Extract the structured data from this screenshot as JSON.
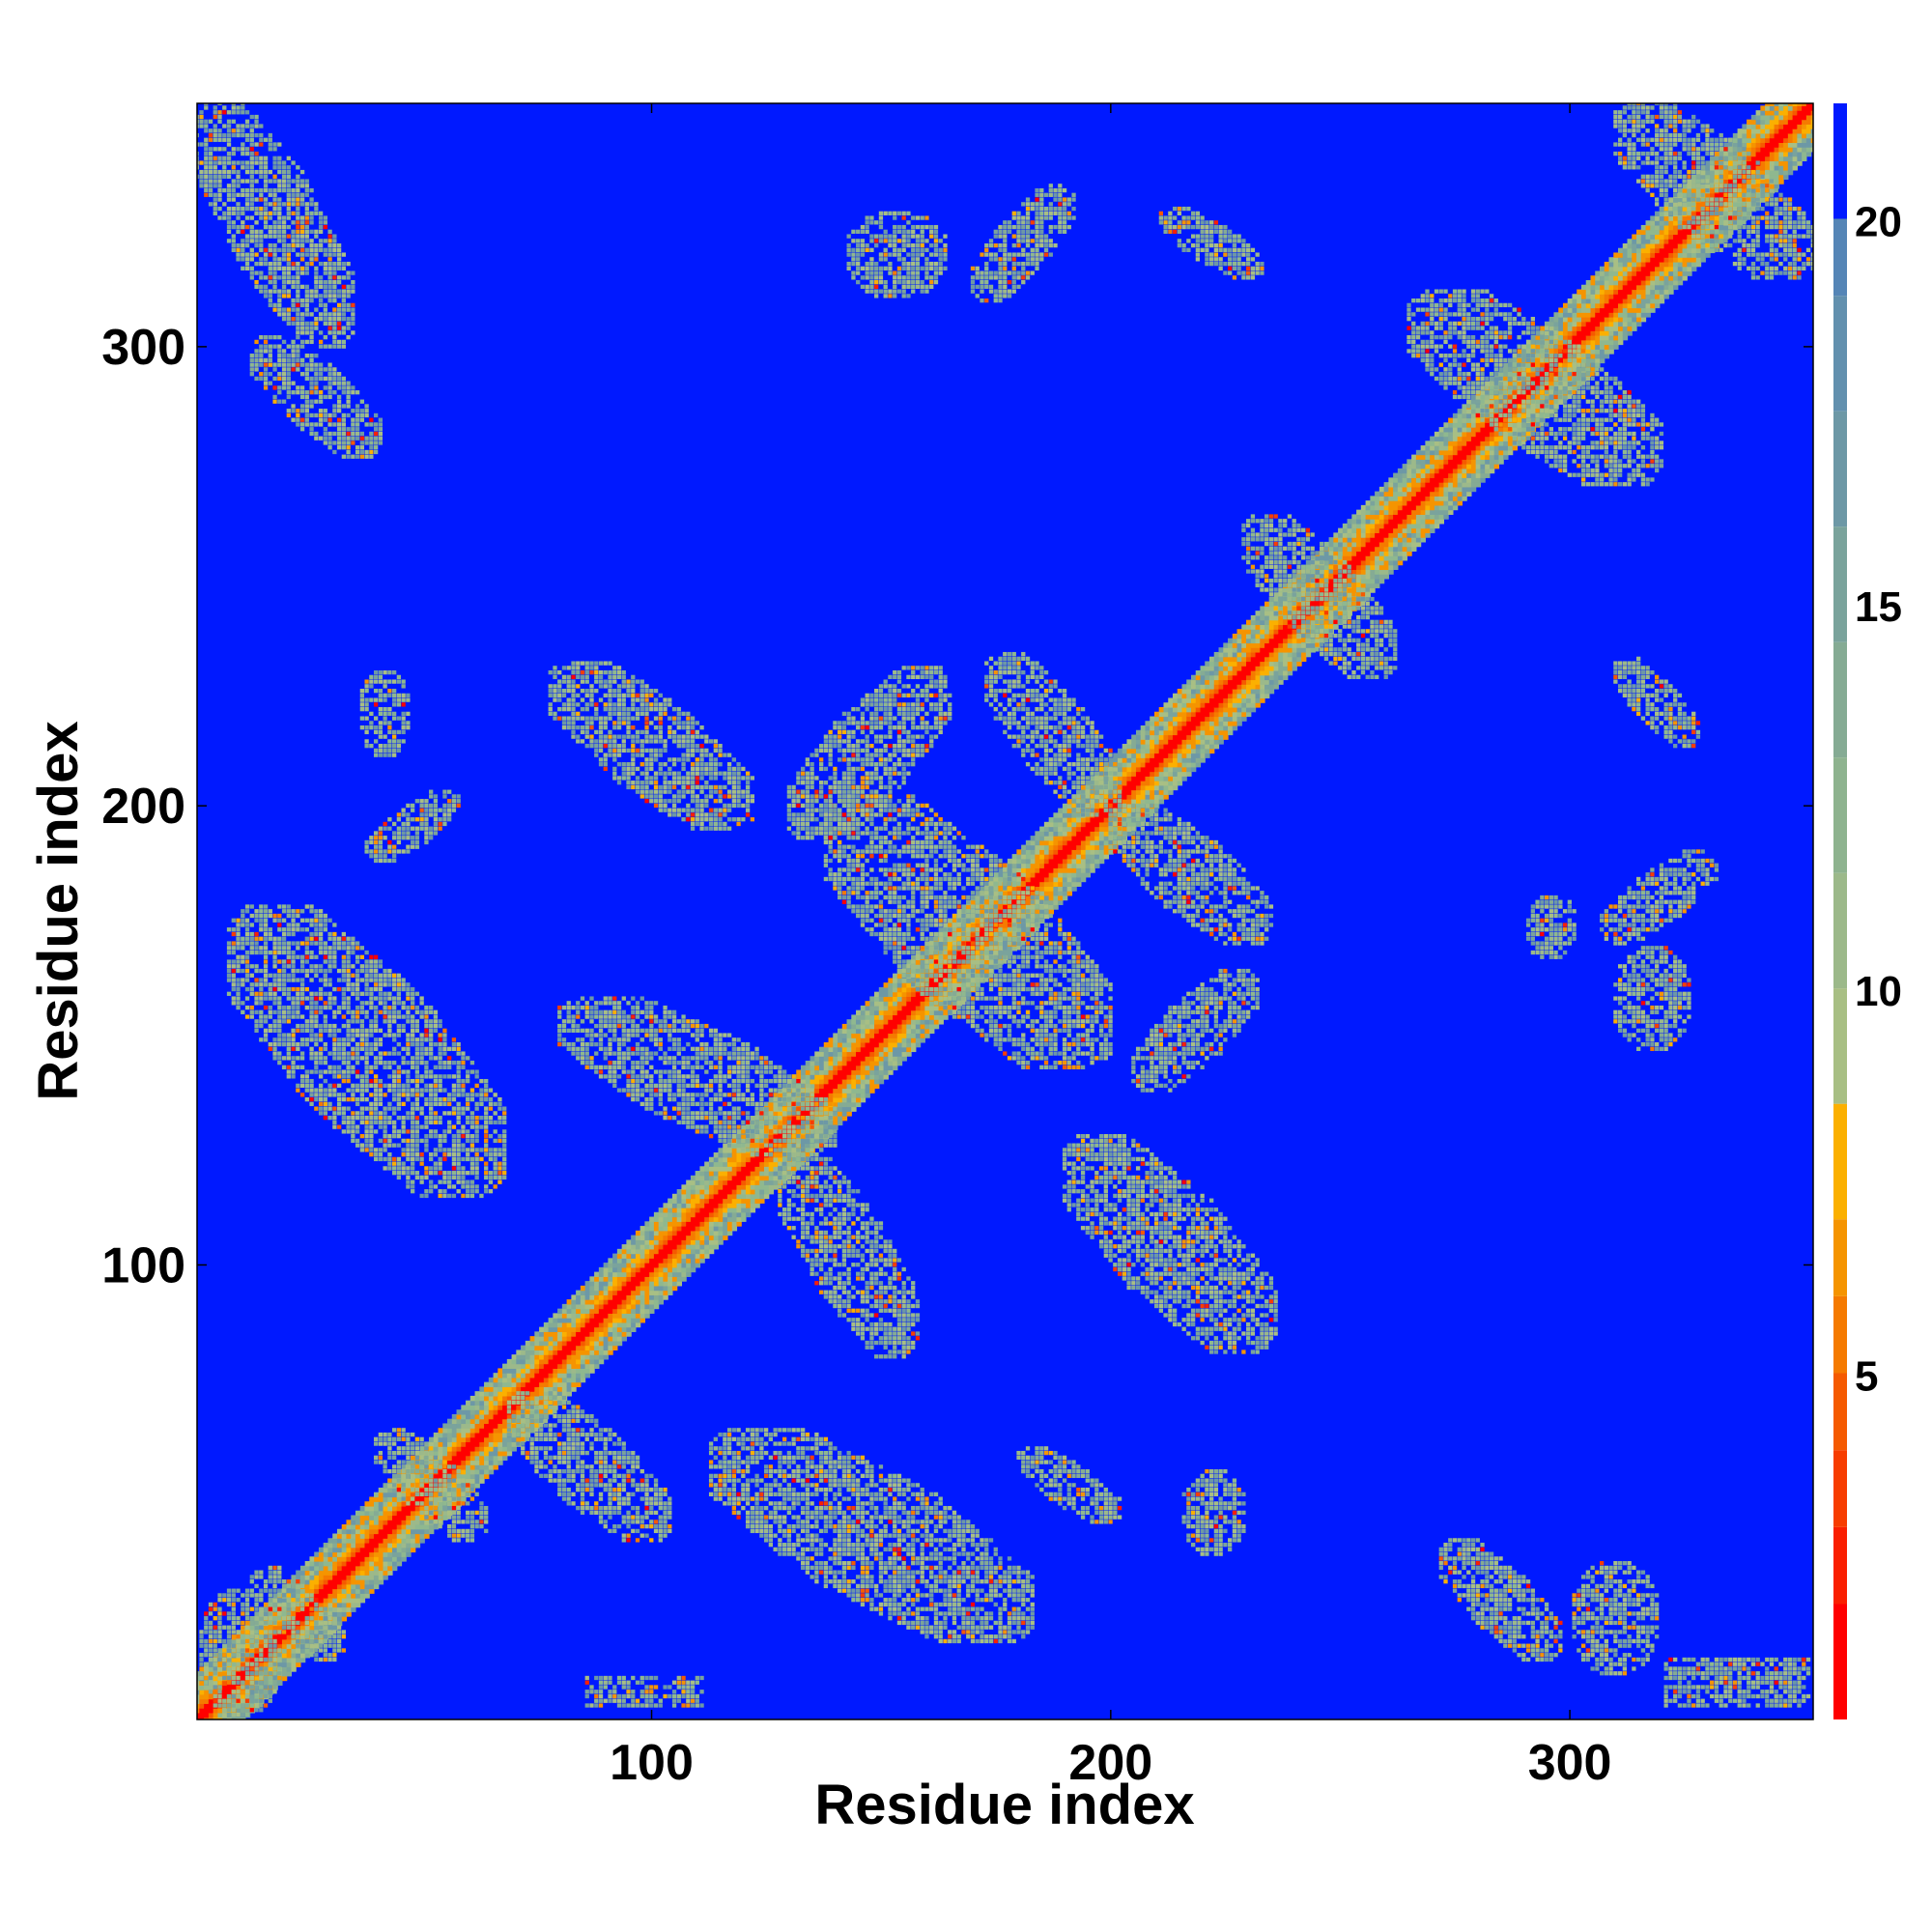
{
  "chart_data": {
    "type": "heatmap",
    "title": "",
    "xlabel": "Residue index",
    "ylabel": "Residue index",
    "xlim": [
      1,
      353
    ],
    "ylim": [
      1,
      353
    ],
    "x_ticks": [
      100,
      200,
      300
    ],
    "y_ticks": [
      100,
      200,
      300
    ],
    "colorbar": {
      "range": [
        0.5,
        21.5
      ],
      "ticks": [
        5,
        10,
        15,
        20
      ],
      "levels": [
        {
          "from": 0.5,
          "to": 2,
          "color": "#ff0000"
        },
        {
          "from": 2,
          "to": 3,
          "color": "#fa1f00"
        },
        {
          "from": 3,
          "to": 4,
          "color": "#f73d00"
        },
        {
          "from": 4,
          "to": 5,
          "color": "#f55a00"
        },
        {
          "from": 5,
          "to": 6,
          "color": "#f57a00"
        },
        {
          "from": 6,
          "to": 7,
          "color": "#f59400"
        },
        {
          "from": 7,
          "to": 8.5,
          "color": "#fbb000"
        },
        {
          "from": 8.5,
          "to": 10,
          "color": "#a8bf84"
        },
        {
          "from": 10,
          "to": 11.5,
          "color": "#9cb98a"
        },
        {
          "from": 11.5,
          "to": 13,
          "color": "#8eb38f"
        },
        {
          "from": 13,
          "to": 14.5,
          "color": "#85ab94"
        },
        {
          "from": 14.5,
          "to": 16,
          "color": "#7aa39c"
        },
        {
          "from": 16,
          "to": 17.5,
          "color": "#6d98a6"
        },
        {
          "from": 17.5,
          "to": 19,
          "color": "#6290ae"
        },
        {
          "from": 19,
          "to": 20,
          "color": "#5585b6"
        },
        {
          "from": 20,
          "to": 21.5,
          "color": "#0019ff"
        }
      ]
    },
    "background_color": "#0019ff",
    "diagonal_color": "#ff0000",
    "contact_color": "#8fb88f",
    "contact_regions": [
      {
        "x": [
          13,
          33
        ],
        "y": [
          14,
          34
        ],
        "angle": "anti"
      },
      {
        "x": [
          40,
          64
        ],
        "y": [
          40,
          64
        ],
        "angle": "anti"
      },
      {
        "x": [
          69,
          104
        ],
        "y": [
          40,
          72
        ],
        "angle": "anti"
      },
      {
        "x": [
          85,
          112
        ],
        "y": [
          2,
          12
        ],
        "angle": "flat"
      },
      {
        "x": [
          113,
          183
        ],
        "y": [
          18,
          64
        ],
        "angle": "anti"
      },
      {
        "x": [
          180,
          202
        ],
        "y": [
          44,
          60
        ],
        "angle": "anti"
      },
      {
        "x": [
          215,
          230
        ],
        "y": [
          36,
          56
        ],
        "angle": "none"
      },
      {
        "x": [
          272,
          298
        ],
        "y": [
          14,
          40
        ],
        "angle": "anti"
      },
      {
        "x": [
          300,
          320
        ],
        "y": [
          10,
          36
        ],
        "angle": "none"
      },
      {
        "x": [
          320,
          353
        ],
        "y": [
          2,
          16
        ],
        "angle": "flat"
      },
      {
        "x": [
          1,
          20
        ],
        "y": [
          1,
          30
        ],
        "angle": "none"
      },
      {
        "x": [
          8,
          68
        ],
        "y": [
          115,
          178
        ],
        "angle": "anti"
      },
      {
        "x": [
          38,
          58
        ],
        "y": [
          188,
          203
        ],
        "angle": "diag"
      },
      {
        "x": [
          36,
          48
        ],
        "y": [
          210,
          230
        ],
        "angle": "none"
      },
      {
        "x": [
          78,
          122
        ],
        "y": [
          195,
          231
        ],
        "angle": "anti"
      },
      {
        "x": [
          80,
          140
        ],
        "y": [
          124,
          158
        ],
        "angle": "anti"
      },
      {
        "x": [
          128,
          158
        ],
        "y": [
          80,
          125
        ],
        "angle": "anti"
      },
      {
        "x": [
          130,
          165
        ],
        "y": [
          193,
          230
        ],
        "angle": "diag"
      },
      {
        "x": [
          138,
          200
        ],
        "y": [
          143,
          202
        ],
        "angle": "anti"
      },
      {
        "x": [
          173,
          202
        ],
        "y": [
          198,
          233
        ],
        "angle": "anti"
      },
      {
        "x": [
          200,
          235
        ],
        "y": [
          170,
          200
        ],
        "angle": "anti"
      },
      {
        "x": [
          205,
          232
        ],
        "y": [
          138,
          164
        ],
        "angle": "diag"
      },
      {
        "x": [
          190,
          236
        ],
        "y": [
          81,
          128
        ],
        "angle": "anti"
      },
      {
        "x": [
          229,
          262
        ],
        "y": [
          228,
          263
        ],
        "angle": "anti"
      },
      {
        "x": [
          265,
          320
        ],
        "y": [
          270,
          312
        ],
        "angle": "anti"
      },
      {
        "x": [
          310,
          353
        ],
        "y": [
          315,
          353
        ],
        "angle": "anti"
      },
      {
        "x": [
          1,
          35
        ],
        "y": [
          300,
          353
        ],
        "angle": "anti"
      },
      {
        "x": [
          13,
          41
        ],
        "y": [
          276,
          302
        ],
        "angle": "anti"
      },
      {
        "x": [
          142,
          165
        ],
        "y": [
          310,
          330
        ],
        "angle": "none"
      },
      {
        "x": [
          170,
          192
        ],
        "y": [
          310,
          335
        ],
        "angle": "diag"
      },
      {
        "x": [
          211,
          233
        ],
        "y": [
          315,
          330
        ],
        "angle": "anti"
      },
      {
        "x": [
          310,
          328
        ],
        "y": [
          213,
          232
        ],
        "angle": "anti"
      },
      {
        "x": [
          307,
          332
        ],
        "y": [
          170,
          190
        ],
        "angle": "diag"
      },
      {
        "x": [
          309,
          327
        ],
        "y": [
          146,
          170
        ],
        "angle": "none"
      },
      {
        "x": [
          290,
          302
        ],
        "y": [
          166,
          181
        ],
        "angle": "none"
      }
    ]
  }
}
